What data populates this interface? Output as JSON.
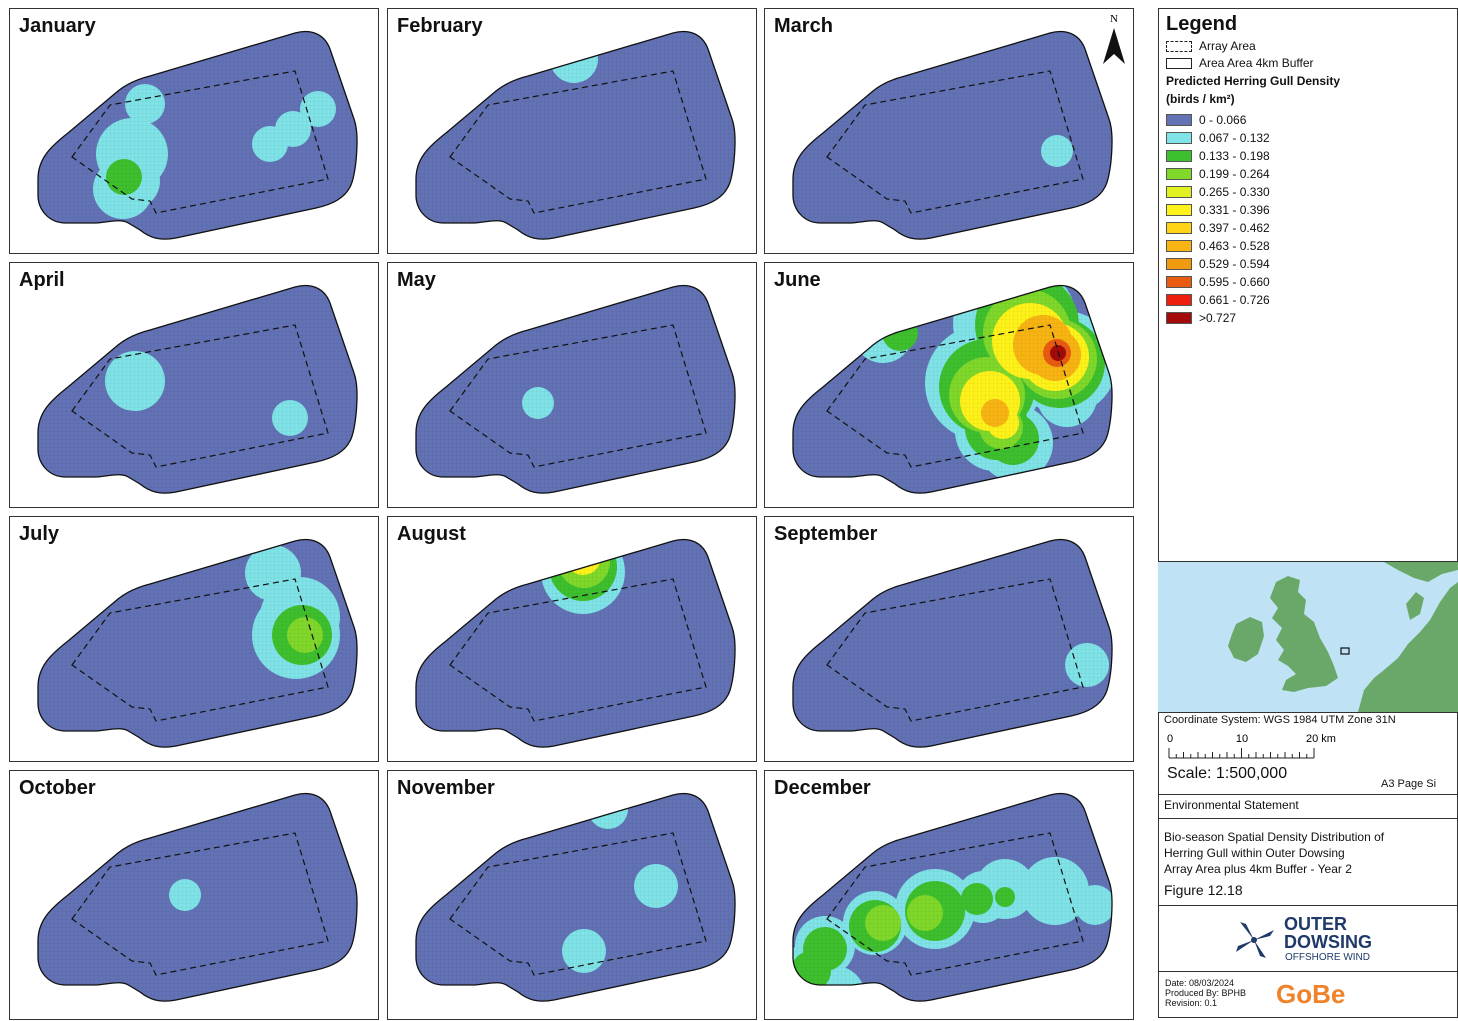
{
  "map": {
    "months": [
      {
        "label": "January"
      },
      {
        "label": "February"
      },
      {
        "label": "March"
      },
      {
        "label": "April"
      },
      {
        "label": "May"
      },
      {
        "label": "June"
      },
      {
        "label": "July"
      },
      {
        "label": "August"
      },
      {
        "label": "September"
      },
      {
        "label": "October"
      },
      {
        "label": "November"
      },
      {
        "label": "December"
      }
    ],
    "north_label": "N"
  },
  "legend": {
    "title": "Legend",
    "array_area": "Array Area",
    "buffer": "Area Area 4km Buffer",
    "density_heading": "Predicted Herring Gull Density",
    "density_units": "(birds / km²)",
    "classes": [
      {
        "label": "0 - 0.066",
        "color": "#6272b4"
      },
      {
        "label": "0.067 - 0.132",
        "color": "#7fe3e8"
      },
      {
        "label": "0.133 - 0.198",
        "color": "#3ec02e"
      },
      {
        "label": "0.199 - 0.264",
        "color": "#7fd82a"
      },
      {
        "label": "0.265 - 0.330",
        "color": "#e0f020"
      },
      {
        "label": "0.331 - 0.396",
        "color": "#fff21a"
      },
      {
        "label": "0.397 - 0.462",
        "color": "#ffd316"
      },
      {
        "label": "0.463 - 0.528",
        "color": "#f8b412"
      },
      {
        "label": "0.529 - 0.594",
        "color": "#f09a10"
      },
      {
        "label": "0.595 - 0.660",
        "color": "#ea5b12"
      },
      {
        "label": "0.661 - 0.726",
        "color": "#ec1f10"
      },
      {
        "label": ">0.727",
        "color": "#a40a0a"
      }
    ]
  },
  "info": {
    "coordinate_system": "Coordinate System: WGS 1984 UTM Zone 31N",
    "scale_ticks": [
      "0",
      "10",
      "20 km"
    ],
    "scale": "Scale: 1:500,000",
    "page_size": "A3 Page Si",
    "document": "Environmental Statement",
    "figure_title_1": "Bio-season Spatial Density Distribution of",
    "figure_title_2": "Herring Gull within Outer Dowsing",
    "figure_title_3": "Array Area plus 4km Buffer - Year 2",
    "figure_number": "Figure 12.18",
    "logo_outer": "OUTER",
    "logo_dowsing": "DOWSING",
    "logo_sub": "OFFSHORE WIND",
    "date": "Date: 08/03/2024",
    "produced_by": "Produced By: BPHB",
    "revision": "Revision: 0.1",
    "gobe": "GoBe"
  },
  "colors": {
    "base": "#6272b4",
    "cyan": "#7fe3e8",
    "green": "#3ec02e",
    "lime": "#7fd82a",
    "yellow": "#fff21a",
    "orange": "#f8b412",
    "red": "#ea5b12",
    "darkred": "#a40a0a",
    "land": "#6aa86a",
    "sea": "#bfe3f4"
  }
}
